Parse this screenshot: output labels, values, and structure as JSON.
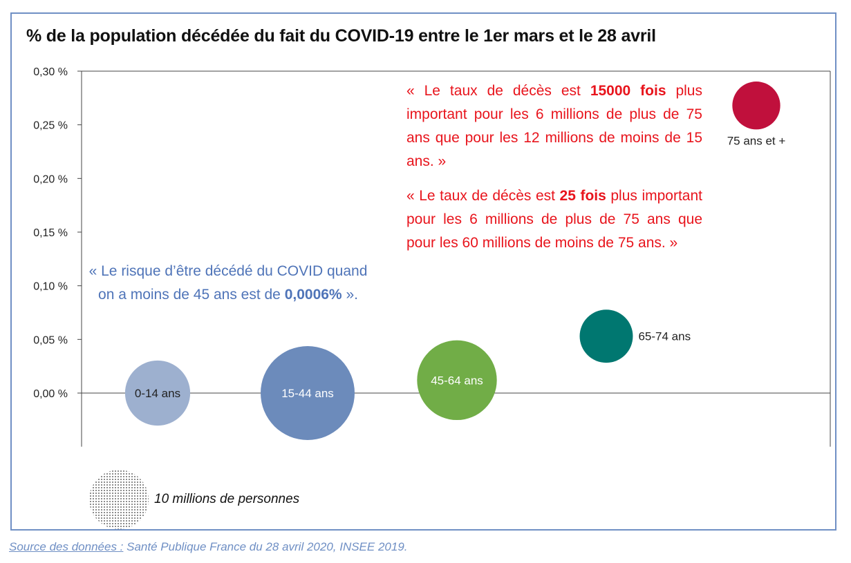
{
  "chart_data": {
    "type": "bubble",
    "title": "% de la population décédée du fait du COVID-19 entre le 1er mars et le 28 avril",
    "y_ticks": [
      "0,30 %",
      "0,25 %",
      "0,20 %",
      "0,15 %",
      "0,10 %",
      "0,05 %",
      "0,00 %"
    ],
    "ylim": [
      -0.05,
      0.3
    ],
    "series": [
      {
        "name": "0-14 ans",
        "y": 0.0,
        "population_millions": 12,
        "color": "#9db0cf",
        "label_color": "#222222",
        "label_position": "center"
      },
      {
        "name": "15-44 ans",
        "y": 0.0,
        "population_millions": 25,
        "color": "#6c8bbb",
        "label_color": "#ffffff",
        "label_position": "center"
      },
      {
        "name": "45-64 ans",
        "y": 0.012,
        "population_millions": 18,
        "color": "#71ad47",
        "label_color": "#ffffff",
        "label_position": "center"
      },
      {
        "name": "65-74 ans",
        "y": 0.053,
        "population_millions": 8,
        "color": "#007770",
        "label_color": "#222222",
        "label_position": "right"
      },
      {
        "name": "75 ans et +",
        "y": 0.268,
        "population_millions": 6.5,
        "color": "#c0103c",
        "label_color": "#222222",
        "label_position": "below"
      }
    ],
    "size_legend": {
      "label": "10 millions de personnes",
      "value_millions": 10
    }
  },
  "annotations": {
    "red_1_pre": "« Le taux de décès est ",
    "red_1_bold": "15000 fois",
    "red_1_post": " plus important pour les 6 millions de plus de 75 ans que pour les 12 millions de moins de 15 ans. »",
    "red_2_pre": "« Le taux de décès est ",
    "red_2_bold": "25 fois",
    "red_2_post": " plus important pour les 6 millions de plus de 75 ans que pour les 60 millions de moins de 75 ans. »",
    "blue_pre": "« Le risque d’être décédé du COVID quand on a moins de 45 ans est de ",
    "blue_bold": "0,0006%",
    "blue_post": " »."
  },
  "source": {
    "label": "Source des données :",
    "text": " Santé Publique France du 28 avril 2020, INSEE 2019."
  }
}
